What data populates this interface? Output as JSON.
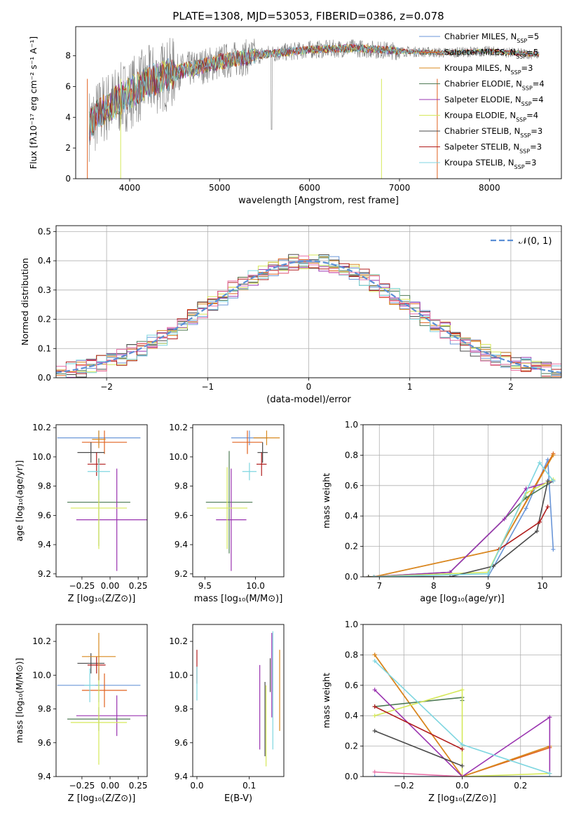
{
  "title": "PLATE=1308, MJD=53053, FIBERID=0386, z=0.078",
  "series_styles": [
    {
      "name": "Chabrier MILES",
      "nssp": "5",
      "color": "#6a96d8"
    },
    {
      "name": "Salpeter MILES",
      "nssp": "5",
      "color": "#e0621f"
    },
    {
      "name": "Kroupa MILES",
      "nssp": "3",
      "color": "#d8891e"
    },
    {
      "name": "Chabrier ELODIE",
      "nssp": "4",
      "color": "#4e7a55"
    },
    {
      "name": "Salpeter ELODIE",
      "nssp": "4",
      "color": "#9a34b0"
    },
    {
      "name": "Kroupa ELODIE",
      "nssp": "4",
      "color": "#d5e85a"
    },
    {
      "name": "Chabrier STELIB",
      "nssp": "3",
      "color": "#4a4a4a"
    },
    {
      "name": "Salpeter STELIB",
      "nssp": "3",
      "color": "#b01c1c"
    },
    {
      "name": "Kroupa STELIB",
      "nssp": "3",
      "color": "#7fd6e0"
    }
  ],
  "chart_data": [
    {
      "type": "line",
      "id": "spectrum",
      "xlabel": "wavelength [Angstrom, rest frame]",
      "ylabel": "Flux [fλ10⁻¹⁷ erg cm⁻² s⁻¹ A⁻¹]",
      "xlim": [
        3400,
        8800
      ],
      "ylim": [
        0,
        9.9
      ],
      "xticks": [
        4000,
        5000,
        6000,
        7000,
        8000
      ],
      "yticks": [
        0,
        2,
        4,
        6,
        8
      ],
      "data_color": "#808080",
      "legend_position": "right",
      "continuum": {
        "x": [
          3550,
          3700,
          3900,
          4200,
          4500,
          5000,
          5500,
          6000,
          6500,
          7000,
          7500,
          8000,
          8500
        ],
        "y": [
          3.5,
          4.5,
          5.2,
          6.3,
          6.9,
          7.6,
          8.1,
          8.4,
          8.5,
          8.3,
          8.2,
          8.3,
          8.1
        ]
      }
    },
    {
      "type": "histogram",
      "id": "residuals",
      "xlabel": "(data-model)/error",
      "ylabel": "Normed distribution",
      "xlim": [
        -2.5,
        2.5
      ],
      "ylim": [
        0,
        0.52
      ],
      "xticks": [
        -2,
        -1,
        0,
        1,
        2
      ],
      "yticks": [
        0.0,
        0.1,
        0.2,
        0.3,
        0.4,
        0.5
      ],
      "grid": true,
      "legend": {
        "label": "𝒩(0, 1)",
        "position": "top-right",
        "color": "#5b8fd6"
      },
      "bin_width": 0.1
    },
    {
      "type": "errorbar",
      "id": "age_vs_Z",
      "xlabel": "Z [log₁₀(Z/Z⊙)]",
      "ylabel": "age  [log₁₀(age/yr)]",
      "xlim": [
        -0.48,
        0.33
      ],
      "ylim": [
        9.18,
        10.22
      ],
      "xticks": [
        -0.25,
        0.0,
        0.25
      ],
      "yticks": [
        9.2,
        9.4,
        9.6,
        9.8,
        10.0,
        10.2
      ],
      "points": [
        {
          "x": -0.1,
          "xerr": 0.37,
          "y": 10.13,
          "yerr": 0.05,
          "c": 0
        },
        {
          "x": -0.05,
          "xerr": 0.2,
          "y": 10.1,
          "yerr": 0.08,
          "c": 1
        },
        {
          "x": -0.1,
          "xerr": 0.28,
          "y": 9.69,
          "yerr": 0.3,
          "c": 3
        },
        {
          "x": 0.06,
          "xerr": 0.36,
          "y": 9.57,
          "yerr": 0.35,
          "c": 4
        },
        {
          "x": -0.1,
          "xerr": 0.25,
          "y": 9.65,
          "yerr": 0.28,
          "c": 5
        },
        {
          "x": -0.17,
          "xerr": 0.12,
          "y": 10.03,
          "yerr": 0.07,
          "c": 6
        },
        {
          "x": -0.12,
          "xerr": 0.08,
          "y": 9.95,
          "yerr": 0.08,
          "c": 7
        },
        {
          "x": -0.1,
          "xerr": 0.1,
          "y": 9.9,
          "yerr": 0.06,
          "c": 8
        },
        {
          "x": -0.1,
          "xerr": 0.06,
          "y": 10.12,
          "yerr": 0.06,
          "c": 2
        }
      ]
    },
    {
      "type": "errorbar",
      "id": "age_vs_mass",
      "xlabel": "mass [log₁₀(M/M⊙)]",
      "ylabel": "",
      "xlim": [
        9.38,
        10.28
      ],
      "ylim": [
        9.18,
        10.22
      ],
      "xticks": [
        9.5,
        10.0
      ],
      "yticks": [
        9.2,
        9.4,
        9.6,
        9.8,
        10.0,
        10.2
      ],
      "points": [
        {
          "x": 9.94,
          "xerr": 0.18,
          "y": 10.13,
          "yerr": 0.05,
          "c": 0
        },
        {
          "x": 9.92,
          "xerr": 0.15,
          "y": 10.1,
          "yerr": 0.08,
          "c": 1
        },
        {
          "x": 9.74,
          "xerr": 0.23,
          "y": 9.69,
          "yerr": 0.35,
          "c": 3
        },
        {
          "x": 9.76,
          "xerr": 0.15,
          "y": 9.57,
          "yerr": 0.35,
          "c": 4
        },
        {
          "x": 9.72,
          "xerr": 0.2,
          "y": 9.65,
          "yerr": 0.28,
          "c": 5
        },
        {
          "x": 10.07,
          "xerr": 0.05,
          "y": 10.03,
          "yerr": 0.07,
          "c": 6
        },
        {
          "x": 10.06,
          "xerr": 0.05,
          "y": 9.95,
          "yerr": 0.08,
          "c": 7
        },
        {
          "x": 9.94,
          "xerr": 0.07,
          "y": 9.9,
          "yerr": 0.06,
          "c": 8
        },
        {
          "x": 10.11,
          "xerr": 0.13,
          "y": 10.13,
          "yerr": 0.05,
          "c": 2
        }
      ]
    },
    {
      "type": "line",
      "id": "weight_vs_age",
      "xlabel": "age  [log₁₀(age/yr)]",
      "ylabel": "mass weight",
      "xlim": [
        6.7,
        10.35
      ],
      "ylim": [
        0,
        1.0
      ],
      "xticks": [
        7,
        8,
        9,
        10
      ],
      "yticks": [
        0.0,
        0.2,
        0.4,
        0.6,
        0.8,
        1.0
      ],
      "grid": true,
      "series": [
        {
          "c": 0,
          "x": [
            6.9,
            9.0,
            9.7,
            10.1,
            10.2
          ],
          "y": [
            0.0,
            0.0,
            0.45,
            0.77,
            0.18
          ]
        },
        {
          "c": 1,
          "x": [
            6.9,
            9.2,
            10.2
          ],
          "y": [
            0.0,
            0.18,
            0.81
          ]
        },
        {
          "c": 2,
          "x": [
            6.9,
            9.2,
            10.2
          ],
          "y": [
            0.0,
            0.18,
            0.8
          ]
        },
        {
          "c": 3,
          "x": [
            6.8,
            8.3,
            9.7,
            10.2
          ],
          "y": [
            0.0,
            0.03,
            0.52,
            0.63
          ]
        },
        {
          "c": 4,
          "x": [
            6.8,
            8.3,
            9.3,
            9.7,
            10.2
          ],
          "y": [
            0.0,
            0.03,
            0.38,
            0.58,
            0.63
          ]
        },
        {
          "c": 5,
          "x": [
            6.8,
            9.0,
            9.7,
            10.2
          ],
          "y": [
            0.0,
            0.03,
            0.55,
            0.64
          ]
        },
        {
          "c": 6,
          "x": [
            6.8,
            8.3,
            9.1,
            9.9,
            10.1
          ],
          "y": [
            0.0,
            0.0,
            0.07,
            0.3,
            0.63
          ]
        },
        {
          "c": 7,
          "x": [
            9.2,
            9.95,
            10.1
          ],
          "y": [
            0.18,
            0.36,
            0.46
          ]
        },
        {
          "c": 8,
          "x": [
            6.9,
            9.0,
            9.95,
            10.2
          ],
          "y": [
            0.0,
            0.02,
            0.75,
            0.63
          ]
        }
      ]
    },
    {
      "type": "errorbar",
      "id": "mass_vs_Z",
      "xlabel": "Z [log₁₀(Z/Z⊙)]",
      "ylabel": "mass [log₁₀(M/M⊙)]",
      "xlim": [
        -0.48,
        0.33
      ],
      "ylim": [
        9.4,
        10.3
      ],
      "xticks": [
        -0.25,
        0.0,
        0.25
      ],
      "yticks": [
        9.4,
        9.6,
        9.8,
        10.0,
        10.2
      ],
      "points": [
        {
          "x": -0.1,
          "xerr": 0.37,
          "y": 9.94,
          "yerr": 0.1,
          "c": 0
        },
        {
          "x": -0.05,
          "xerr": 0.2,
          "y": 9.91,
          "yerr": 0.1,
          "c": 1
        },
        {
          "x": -0.1,
          "xerr": 0.28,
          "y": 9.74,
          "yerr": 0.07,
          "c": 3
        },
        {
          "x": 0.06,
          "xerr": 0.36,
          "y": 9.76,
          "yerr": 0.12,
          "c": 4
        },
        {
          "x": -0.1,
          "xerr": 0.25,
          "y": 9.72,
          "yerr": 0.25,
          "c": 5
        },
        {
          "x": -0.17,
          "xerr": 0.12,
          "y": 10.07,
          "yerr": 0.06,
          "c": 6
        },
        {
          "x": -0.12,
          "xerr": 0.08,
          "y": 10.06,
          "yerr": 0.05,
          "c": 7
        },
        {
          "x": -0.18,
          "xerr": 0.05,
          "y": 9.94,
          "yerr": 0.1,
          "c": 8
        },
        {
          "x": -0.1,
          "xerr": 0.15,
          "y": 10.11,
          "yerr": 0.14,
          "c": 2
        }
      ]
    },
    {
      "type": "errorbar",
      "id": "mass_vs_ebv",
      "xlabel": "E(B-V)",
      "ylabel": "",
      "xlim": [
        -0.008,
        0.166
      ],
      "ylim": [
        9.4,
        10.3
      ],
      "xticks": [
        0.0,
        0.1
      ],
      "yticks": [
        9.4,
        9.6,
        9.8,
        10.0,
        10.2
      ],
      "points": [
        {
          "x": 0.0,
          "y": 10.05,
          "yerr": 0.1,
          "c": 7
        },
        {
          "x": 0.0,
          "y": 9.95,
          "yerr": 0.1,
          "c": 8
        },
        {
          "x": 0.12,
          "y": 9.81,
          "yerr": 0.25,
          "c": 4
        },
        {
          "x": 0.13,
          "y": 9.74,
          "yerr": 0.22,
          "c": 6
        },
        {
          "x": 0.132,
          "y": 9.7,
          "yerr": 0.24,
          "c": 5
        },
        {
          "x": 0.145,
          "y": 9.91,
          "yerr": 0.35,
          "c": 8
        },
        {
          "x": 0.143,
          "y": 10.0,
          "yerr": 0.25,
          "c": 4
        },
        {
          "x": 0.158,
          "y": 9.91,
          "yerr": 0.24,
          "c": 2
        },
        {
          "x": 0.14,
          "y": 10.0,
          "yerr": 0.1,
          "c": 6
        }
      ]
    },
    {
      "type": "line",
      "id": "weight_vs_Z",
      "xlabel": "Z [log₁₀(Z/Z⊙)]",
      "ylabel": "mass weight",
      "xlim": [
        -0.34,
        0.34
      ],
      "ylim": [
        0,
        1.0
      ],
      "xticks": [
        -0.2,
        0.0,
        0.2
      ],
      "yticks": [
        0.0,
        0.2,
        0.4,
        0.6,
        0.8,
        1.0
      ],
      "grid": true,
      "series": [
        {
          "c": 0,
          "x": [
            -0.3,
            0.0,
            0.3
          ],
          "y": [
            0.0,
            0.0,
            0.0
          ]
        },
        {
          "c": 1,
          "x": [
            -0.3,
            0.0,
            0.3
          ],
          "y": [
            0.8,
            0.0,
            0.19
          ]
        },
        {
          "c": 2,
          "x": [
            -0.3,
            0.0,
            0.3
          ],
          "y": [
            0.8,
            0.0,
            0.2
          ]
        },
        {
          "c": 3,
          "x": [
            -0.3,
            0.0,
            0.0
          ],
          "y": [
            0.46,
            0.52,
            0.5
          ]
        },
        {
          "c": 4,
          "x": [
            -0.3,
            0.0,
            0.3,
            0.3
          ],
          "y": [
            0.57,
            0.0,
            0.39,
            0.02
          ]
        },
        {
          "c": 5,
          "x": [
            -0.3,
            0.0,
            0.0,
            0.3
          ],
          "y": [
            0.4,
            0.57,
            0.0,
            0.02
          ]
        },
        {
          "c": 6,
          "x": [
            -0.3,
            0.0
          ],
          "y": [
            0.3,
            0.07
          ]
        },
        {
          "c": 7,
          "x": [
            -0.3,
            0.0
          ],
          "y": [
            0.46,
            0.18
          ]
        },
        {
          "c": 8,
          "x": [
            -0.3,
            0.0,
            0.3
          ],
          "y": [
            0.76,
            0.21,
            0.02
          ]
        },
        {
          "c": 9,
          "x": [
            -0.3,
            0.0
          ],
          "y": [
            0.03,
            0.0
          ]
        }
      ]
    }
  ],
  "extra_colors": [
    "#e86fa6"
  ]
}
